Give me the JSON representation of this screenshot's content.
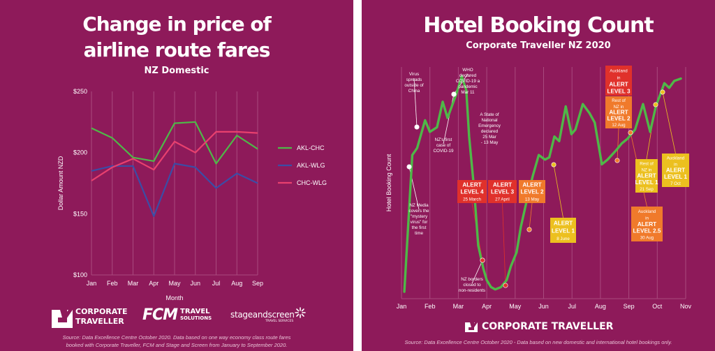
{
  "left": {
    "title_line1": "Change in price of",
    "title_line2": "airline route fares",
    "subtitle": "NZ Domestic",
    "source_line1": "Source: Data Excellence Centre October 2020. Data based on one way economy class route fares",
    "source_line2": "booked with Corporate Traveller, FCM and Stage and Screen from January to September 2020.",
    "logos": {
      "corporate_line1": "CORPORATE",
      "corporate_line2": "TRAVELLER",
      "fcm_main": "FCM",
      "fcm_sub1": "TRAVEL",
      "fcm_sub2": "SOLUTIONS",
      "stage_main": "stageandscreen",
      "stage_sub": "TRAVEL SERVICES"
    }
  },
  "right": {
    "title": "Hotel Booking Count",
    "subtitle": "Corporate Traveller NZ 2020",
    "logo_text": "CORPORATE TRAVELLER",
    "source": "Source: Data Excellence Centre October 2020 - Data based on new domestic and international hotel bookings only."
  },
  "colors": {
    "background": "#8e1a5a",
    "akl_chc": "#4fb848",
    "akl_wlg": "#3b4da6",
    "chc_wlg": "#e8406e",
    "hotel_line": "#4fb848",
    "alert_red": "#e0312b",
    "alert_orange": "#f07a2b",
    "alert_yellow": "#ecc01f"
  },
  "chart_data": [
    {
      "type": "line",
      "title": "Change in price of airline route fares",
      "subtitle": "NZ Domestic",
      "xlabel": "Month",
      "ylabel": "Dollar Amount NZD",
      "categories": [
        "Jan",
        "Feb",
        "Mar",
        "Apr",
        "May",
        "Jun",
        "Jul",
        "Aug",
        "Sep"
      ],
      "ylim": [
        100,
        250
      ],
      "yticks": [
        100,
        150,
        200,
        250
      ],
      "ytick_labels": [
        "$100",
        "$150",
        "$200",
        "$250"
      ],
      "grid": "vertical",
      "legend": "right",
      "series": [
        {
          "name": "AKL-CHC",
          "color": "#4fb848",
          "values": [
            220,
            212,
            196,
            193,
            224,
            225,
            191,
            214,
            203
          ]
        },
        {
          "name": "AKL-WLG",
          "color": "#3b4da6",
          "values": [
            185,
            189,
            189,
            148,
            191,
            188,
            171,
            183,
            175
          ]
        },
        {
          "name": "CHC-WLG",
          "color": "#e8406e",
          "values": [
            177,
            188,
            195,
            186,
            209,
            200,
            217,
            217,
            216
          ]
        }
      ]
    },
    {
      "type": "line",
      "title": "Hotel Booking Count",
      "subtitle": "Corporate Traveller NZ 2020",
      "ylabel": "Hotel Booking Count",
      "x_tick_labels": [
        "Jan",
        "Feb",
        "Mar",
        "Apr",
        "May",
        "Jun",
        "Jul",
        "Aug",
        "Sep",
        "Oct",
        "Nov"
      ],
      "grid": "vertical",
      "series": [
        {
          "name": "",
          "color": "#4fb848",
          "x": [
            0.1,
            0.38,
            0.55,
            0.83,
            1.0,
            1.25,
            1.45,
            1.62,
            1.92,
            2.12,
            2.28,
            2.38,
            2.55,
            2.7,
            2.88,
            3.0,
            3.15,
            3.3,
            3.5,
            3.7,
            3.85,
            4.05,
            4.2,
            4.42,
            4.62,
            4.83,
            5.05,
            5.2,
            5.38,
            5.55,
            5.78,
            5.98,
            6.12,
            6.38,
            6.62,
            6.8,
            7.05,
            7.25,
            7.55,
            7.75,
            7.95,
            8.22,
            8.5,
            8.75,
            8.95,
            9.25,
            9.42,
            9.6,
            9.83
          ],
          "values": [
            3,
            62,
            65,
            77,
            72,
            74,
            85,
            78,
            88,
            96,
            90,
            70,
            48,
            23,
            13,
            8,
            5,
            4,
            5,
            8,
            14,
            20,
            31,
            43,
            53,
            62,
            60,
            61,
            70,
            68,
            83,
            71,
            73,
            84,
            80,
            76,
            58,
            60,
            64,
            67,
            69,
            73,
            84,
            72,
            83,
            93,
            91,
            94,
            95
          ]
        }
      ],
      "annotations": [
        {
          "lines": [
            "Virus",
            "spreads",
            "outside of",
            "China"
          ]
        },
        {
          "lines": [
            "NZ Media",
            "covers the",
            "\"mystery",
            "virus\" for",
            "the first",
            "time"
          ]
        },
        {
          "lines": [
            "NZ's first",
            "case of",
            "COVID-19"
          ]
        },
        {
          "lines": [
            "WHO",
            "declared",
            "COVID-19 a",
            "pandemic",
            "Mar 11"
          ]
        },
        {
          "lines": [
            "A State of",
            "National",
            "Emergency",
            "declared",
            "25 Mar",
            "- 13 May"
          ]
        },
        {
          "lines": [
            "NZ borders",
            "closed to",
            "non-residents"
          ]
        },
        {
          "lines": [
            "ALERT",
            "LEVEL 4",
            "25 March"
          ],
          "style": "red"
        },
        {
          "lines": [
            "ALERT",
            "LEVEL 3",
            "27 April"
          ],
          "style": "red"
        },
        {
          "lines": [
            "ALERT",
            "LEVEL 2",
            "13 May"
          ],
          "style": "orange"
        },
        {
          "lines": [
            "ALERT",
            "LEVEL 1",
            "8 June"
          ],
          "style": "yellow"
        },
        {
          "lines": [
            "Auckland",
            "in",
            "ALERT",
            "LEVEL 3"
          ],
          "style": "red"
        },
        {
          "lines": [
            "Rest of",
            "NZ in",
            "ALERT",
            "LEVEL 2",
            "12 Aug"
          ],
          "style": "orange"
        },
        {
          "lines": [
            "Rest of",
            "NZ in",
            "ALERT",
            "LEVEL 1",
            "21 Sep"
          ],
          "style": "yellow"
        },
        {
          "lines": [
            "Auckland",
            "in",
            "ALERT",
            "LEVEL 2.5",
            "30 Aug"
          ],
          "style": "orange"
        },
        {
          "lines": [
            "Auckland",
            "in",
            "ALERT",
            "LEVEL 1",
            "7 Oct"
          ],
          "style": "yellow"
        }
      ]
    }
  ]
}
